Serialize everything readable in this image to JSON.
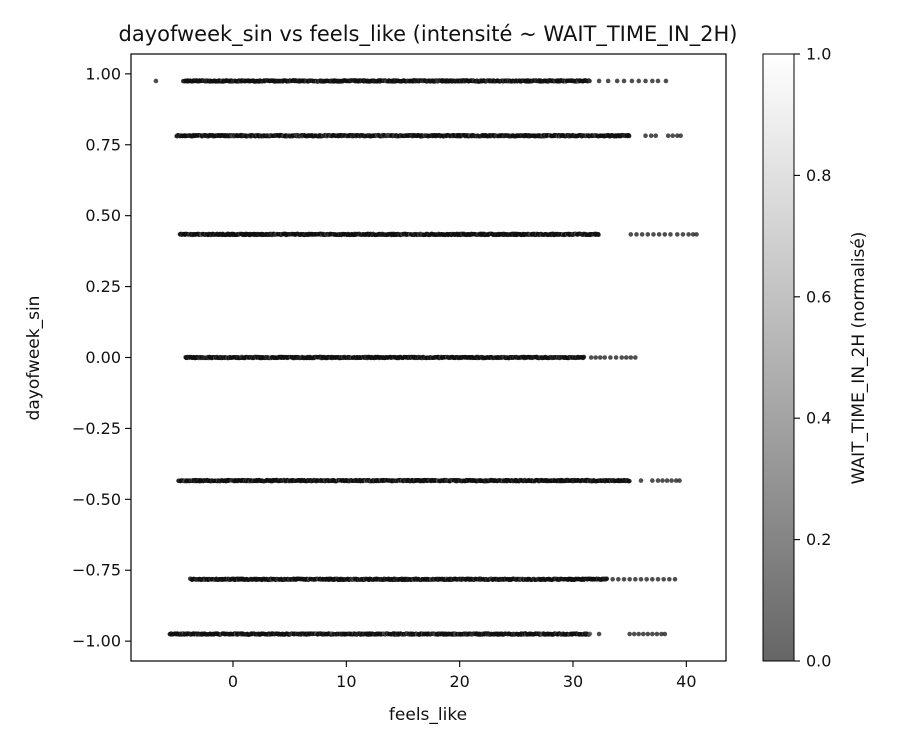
{
  "chart_data": {
    "type": "scatter",
    "title": "dayofweek_sin vs feels_like (intensité ~ WAIT_TIME_IN_2H)",
    "xlabel": "feels_like",
    "ylabel": "dayofweek_sin",
    "xlim": [
      -9,
      43.5
    ],
    "ylim": [
      -1.07,
      1.07
    ],
    "x_ticks": [
      0,
      10,
      20,
      30,
      40
    ],
    "x_tick_labels": [
      "0",
      "10",
      "20",
      "30",
      "40"
    ],
    "y_ticks": [
      -1.0,
      -0.75,
      -0.5,
      -0.25,
      0.0,
      0.25,
      0.5,
      0.75,
      1.0
    ],
    "y_tick_labels": [
      "−1.00",
      "−0.75",
      "−0.50",
      "−0.25",
      "0.00",
      "0.25",
      "0.50",
      "0.75",
      "1.00"
    ],
    "grid": false,
    "colorbar": {
      "label": "WAIT_TIME_IN_2H (normalisé)",
      "range": [
        0.0,
        1.0
      ],
      "ticks": [
        0.0,
        0.2,
        0.4,
        0.6,
        0.8,
        1.0
      ],
      "tick_labels": [
        "0.0",
        "0.2",
        "0.4",
        "0.6",
        "0.8",
        "1.0"
      ],
      "colormap": "gray",
      "alpha": 0.6
    },
    "series": [
      {
        "y": 0.975,
        "x_dense": [
          -4.4,
          31.5
        ],
        "x_sparse": [
          -6.8,
          32.3,
          33.1,
          33.9,
          34.5,
          35.2,
          35.8,
          36.4,
          37.0,
          37.5,
          38.2
        ]
      },
      {
        "y": 0.782,
        "x_dense": [
          -5.0,
          35.0
        ],
        "x_sparse": [
          36.4,
          36.9,
          37.3,
          38.4,
          38.8,
          39.2,
          39.5
        ]
      },
      {
        "y": 0.434,
        "x_dense": [
          -4.7,
          32.3
        ],
        "x_sparse": [
          35.1,
          35.6,
          36.1,
          36.6,
          37.1,
          37.6,
          38.1,
          38.6,
          39.2,
          39.7,
          40.2,
          40.6,
          40.9
        ]
      },
      {
        "y": 0.0,
        "x_dense": [
          -4.2,
          31.0
        ],
        "x_sparse": [
          31.6,
          32.0,
          32.4,
          32.8,
          33.3,
          33.8,
          34.3,
          34.7,
          35.1,
          35.5
        ]
      },
      {
        "y": -0.434,
        "x_dense": [
          -4.8,
          35.0
        ],
        "x_sparse": [
          36.0,
          37.0,
          37.5,
          37.9,
          38.3,
          38.7,
          39.1,
          39.4
        ]
      },
      {
        "y": -0.782,
        "x_dense": [
          -3.8,
          33.0
        ],
        "x_sparse": [
          33.5,
          34.0,
          34.5,
          35.0,
          35.5,
          36.0,
          36.5,
          37.0,
          37.5,
          38.0,
          38.5,
          39.0
        ]
      },
      {
        "y": -0.975,
        "x_dense": [
          -5.6,
          31.5
        ],
        "x_sparse": [
          32.3,
          35.0,
          35.4,
          35.8,
          36.2,
          36.6,
          37.0,
          37.4,
          37.8,
          38.1
        ]
      }
    ]
  }
}
